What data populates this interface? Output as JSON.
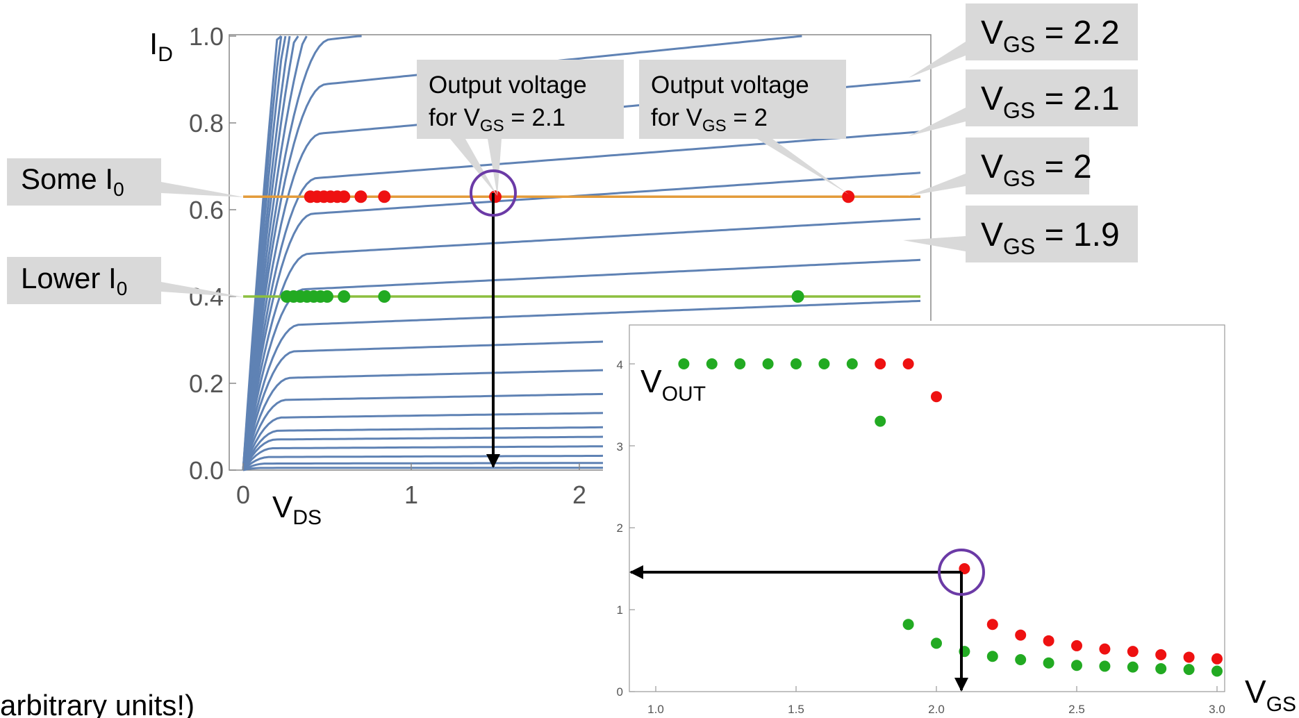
{
  "colors": {
    "curve": "#5f82b4",
    "some_line": "#e39b3a",
    "lower_line": "#8cbf3f",
    "red_dot": "#ee1111",
    "green_dot": "#22aa22",
    "highlight": "#6b3aa6",
    "callout_bg": "#d9d9d9",
    "axis": "#888888",
    "tick_text": "#555555",
    "arrow": "#000000"
  },
  "main_chart": {
    "ylabel": {
      "base": "I",
      "sub": "D"
    },
    "xlabel": {
      "base": "V",
      "sub": "DS"
    },
    "ytick_labels": [
      "0.0",
      "0.2",
      "0.4",
      "0.6",
      "0.8",
      "1.0"
    ],
    "xtick_labels": [
      "0",
      "1",
      "2"
    ]
  },
  "callouts": {
    "some_i0": {
      "base": "Some I",
      "sub": "0"
    },
    "lower_i0": {
      "base": "Lower I",
      "sub": "0"
    },
    "out_21": {
      "line1": "Output voltage",
      "line2_base": "for V",
      "line2_sub": "GS",
      "line2_rest": " = 2.1"
    },
    "out_2": {
      "line1": "Output voltage",
      "line2_base": "for V",
      "line2_sub": "GS",
      "line2_rest": " = 2"
    },
    "vgs_22": {
      "base": "V",
      "sub": "GS",
      "rest": " = 2.2"
    },
    "vgs_21": {
      "base": "V",
      "sub": "GS",
      "rest": " = 2.1"
    },
    "vgs_2": {
      "base": "V",
      "sub": "GS",
      "rest": " = 2"
    },
    "vgs_19": {
      "base": "V",
      "sub": "GS",
      "rest": " = 1.9"
    }
  },
  "inset_chart": {
    "ylabel": {
      "base": "V",
      "sub": "OUT"
    },
    "xlabel": {
      "base": "V",
      "sub": "GS"
    },
    "ytick_labels": [
      "0",
      "1",
      "2",
      "3",
      "4"
    ],
    "xtick_labels": [
      "1.0",
      "1.5",
      "2.0",
      "2.5",
      "3.0"
    ]
  },
  "footnote": "arbitrary units!)",
  "chart_data": [
    {
      "type": "line",
      "xlabel": "VDS",
      "ylabel": "ID",
      "xlim": [
        0,
        2.2
      ],
      "ylim": [
        0,
        1.0
      ],
      "series_note": "",
      "curve_saturation_levels": [
        0.005,
        0.015,
        0.03,
        0.05,
        0.07,
        0.09,
        0.12,
        0.16,
        0.21,
        0.27,
        0.33,
        0.41,
        0.49,
        0.58,
        0.66,
        0.76,
        0.87,
        0.97,
        1.1,
        1.25,
        1.4,
        1.6,
        1.8,
        2.0
      ],
      "curve_slope": 0.045,
      "some_i0_level": 0.63,
      "lower_i0_level": 0.4,
      "red_points_vds": [
        0.4,
        0.44,
        0.48,
        0.52,
        0.56,
        0.6,
        0.7,
        0.84,
        1.5,
        3.6
      ],
      "green_points_vds": [
        0.26,
        0.3,
        0.34,
        0.38,
        0.42,
        0.46,
        0.5,
        0.6,
        0.84,
        3.3
      ],
      "highlight_point": {
        "vds": 1.5,
        "id": 0.63
      }
    },
    {
      "type": "scatter",
      "xlabel": "VGS",
      "ylabel": "VOUT",
      "xlim": [
        0.92,
        3.04
      ],
      "ylim": [
        0,
        4.4
      ],
      "series": [
        {
          "color": "red",
          "x": [
            1.8,
            1.9,
            2.0,
            2.1,
            2.2,
            2.3,
            2.4,
            2.5,
            2.6,
            2.7,
            2.8,
            2.9,
            3.0
          ],
          "y": [
            4.0,
            4.0,
            3.6,
            1.5,
            0.82,
            0.69,
            0.62,
            0.56,
            0.52,
            0.49,
            0.45,
            0.42,
            0.4
          ]
        },
        {
          "color": "green",
          "x": [
            1.1,
            1.2,
            1.3,
            1.4,
            1.5,
            1.6,
            1.7,
            1.8,
            1.9,
            2.0,
            2.1,
            2.2,
            2.3,
            2.4,
            2.5,
            2.6,
            2.7,
            2.8,
            2.9,
            3.0
          ],
          "y": [
            4.0,
            4.0,
            4.0,
            4.0,
            4.0,
            4.0,
            4.0,
            3.3,
            0.82,
            0.59,
            0.49,
            0.43,
            0.39,
            0.35,
            0.32,
            0.31,
            0.3,
            0.28,
            0.27,
            0.25
          ]
        }
      ],
      "highlight_point": {
        "x": 2.1,
        "y": 1.5
      }
    }
  ]
}
